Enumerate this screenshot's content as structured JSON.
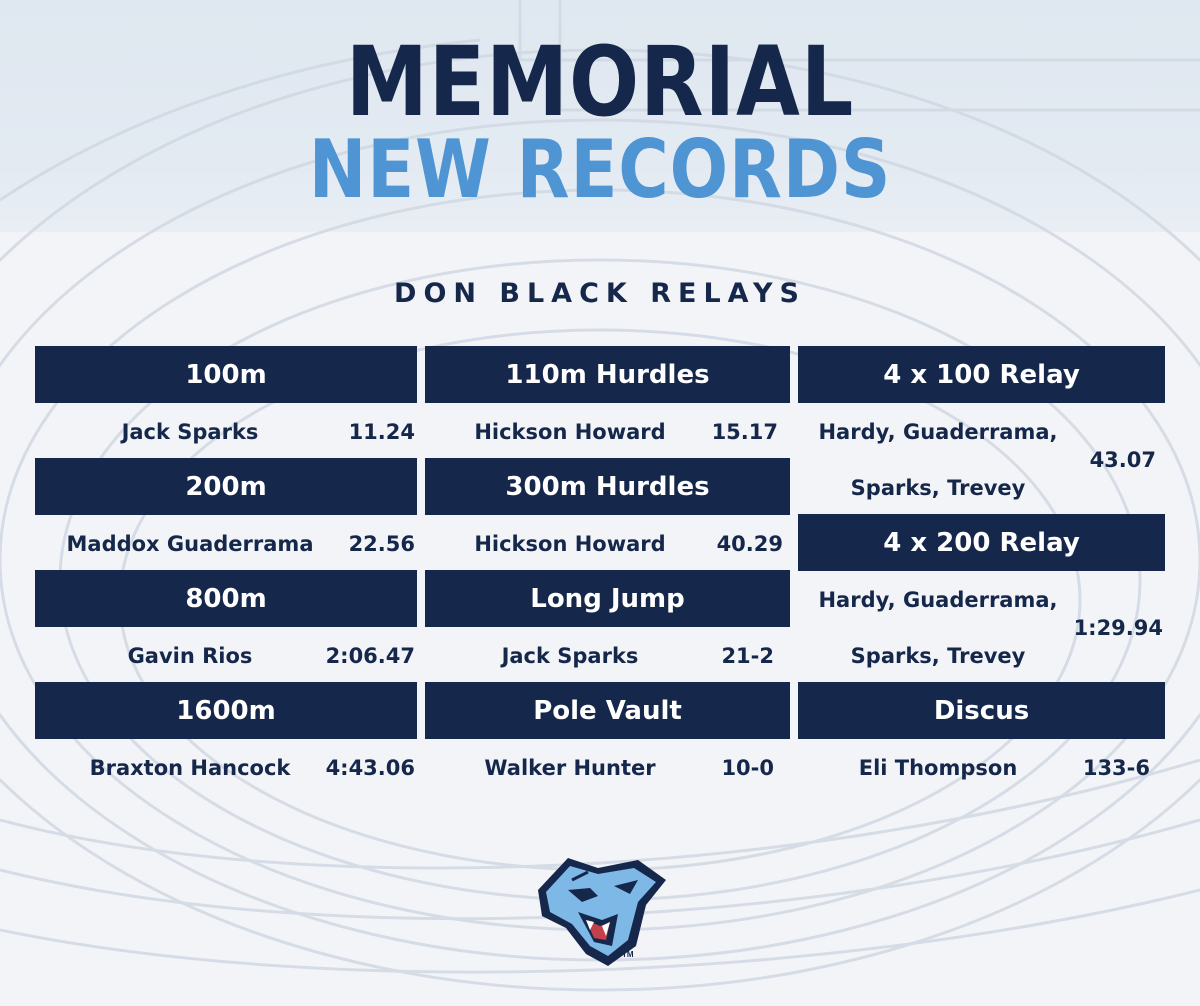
{
  "header": {
    "title_line1": "MEMORIAL",
    "title_line2": "NEW RECORDS",
    "subtitle": "DON BLACK RELAYS"
  },
  "colors": {
    "navy": "#15284b",
    "light_blue": "#4f95d3",
    "white": "#ffffff"
  },
  "records": {
    "col1": [
      {
        "event": "100m",
        "name": "Jack Sparks",
        "mark": "11.24"
      },
      {
        "event": "200m",
        "name": "Maddox Guaderrama",
        "mark": "22.56"
      },
      {
        "event": "800m",
        "name": "Gavin Rios",
        "mark": "2:06.47"
      },
      {
        "event": "1600m",
        "name": "Braxton Hancock",
        "mark": "4:43.06"
      }
    ],
    "col2": [
      {
        "event": "110m Hurdles",
        "name": "Hickson Howard",
        "mark": "15.17"
      },
      {
        "event": "300m Hurdles",
        "name": "Hickson Howard",
        "mark": "40.29"
      },
      {
        "event": "Long Jump",
        "name": "Jack Sparks",
        "mark": "21-2"
      },
      {
        "event": "Pole Vault",
        "name": "Walker Hunter",
        "mark": "10-0"
      }
    ],
    "col3": [
      {
        "event": "4 x 100 Relay",
        "name_line1": "Hardy, Guaderrama,",
        "name_line2": "Sparks, Trevey",
        "mark": "43.07"
      },
      {
        "event": "4 x 200 Relay",
        "name_line1": "Hardy, Guaderrama,",
        "name_line2": "Sparks, Trevey",
        "mark": "1:29.94"
      },
      {
        "event": "Discus",
        "name": "Eli Thompson",
        "mark": "133-6"
      }
    ]
  },
  "logo": {
    "icon": "panther-head-icon",
    "trademark": "TM"
  }
}
